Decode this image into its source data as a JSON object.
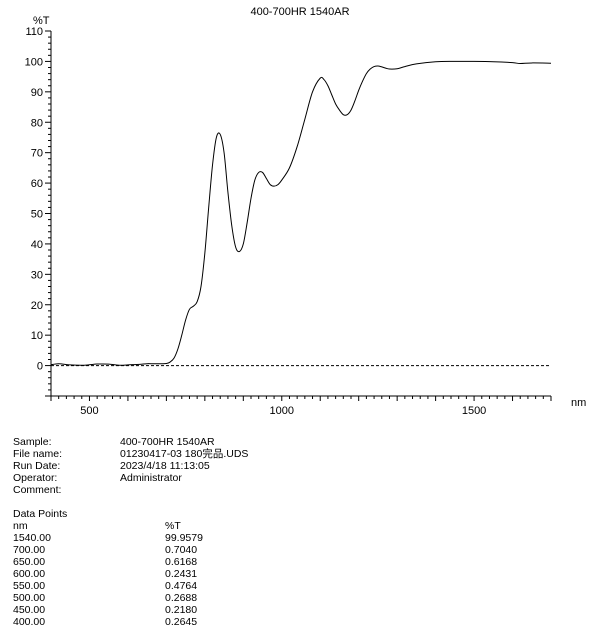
{
  "chart_data": {
    "type": "line",
    "title": "400-700HR 1540AR",
    "ylabel": "%T",
    "xlabel": "nm",
    "xlim": [
      400,
      1700
    ],
    "ylim": [
      -10,
      110
    ],
    "xticks": [
      500,
      1000,
      1500
    ],
    "yticks": [
      110,
      100,
      90,
      80,
      70,
      60,
      50,
      40,
      30,
      20,
      10,
      0
    ],
    "reference_line": 0,
    "grid": false,
    "series": [
      {
        "x": [
          400,
          420,
          450,
          480,
          500,
          520,
          550,
          580,
          600,
          630,
          650,
          670,
          700,
          710,
          720,
          730,
          740,
          750,
          760,
          770,
          780,
          790,
          800,
          810,
          820,
          830,
          840,
          850,
          860,
          870,
          880,
          890,
          900,
          910,
          920,
          930,
          940,
          950,
          960,
          970,
          980,
          990,
          1000,
          1020,
          1040,
          1060,
          1080,
          1100,
          1110,
          1120,
          1130,
          1140,
          1150,
          1160,
          1170,
          1180,
          1190,
          1200,
          1210,
          1220,
          1230,
          1240,
          1250,
          1260,
          1270,
          1280,
          1300,
          1320,
          1350,
          1400,
          1450,
          1500,
          1550,
          1600,
          1620,
          1650,
          1700
        ],
        "y": [
          0.26,
          0.6,
          0.22,
          0.1,
          0.27,
          0.5,
          0.48,
          0.1,
          0.24,
          0.4,
          0.62,
          0.6,
          0.7,
          1.2,
          2.5,
          5.5,
          10,
          15,
          18.5,
          19.5,
          21,
          26,
          37,
          52,
          66,
          75,
          76,
          70,
          57,
          46,
          39,
          37.5,
          40,
          47,
          55,
          61,
          63.5,
          63.5,
          61.5,
          59.5,
          59,
          59.5,
          61,
          65,
          72,
          81,
          90,
          94.5,
          94,
          92,
          89,
          86,
          84,
          82.5,
          82.5,
          84,
          87,
          90.5,
          93.5,
          96,
          97.5,
          98.3,
          98.5,
          98.2,
          97.8,
          97.5,
          97.6,
          98.3,
          99.2,
          99.9,
          100,
          100,
          99.9,
          99.6,
          99.3,
          99.5,
          99.4
        ]
      }
    ]
  },
  "info": {
    "sample_label": "Sample:",
    "sample_value": "400-700HR 1540AR",
    "file_label": "File name:",
    "file_value": "01230417-03 180完品.UDS",
    "date_label": "Run Date:",
    "date_value": "2023/4/18 11:13:05",
    "operator_label": "Operator:",
    "operator_value": "Administrator",
    "comment_label": "Comment:",
    "comment_value": ""
  },
  "data_points": {
    "title": "Data Points",
    "col1_header": "nm",
    "col2_header": "%T",
    "rows": [
      {
        "nm": "1540.00",
        "t": "99.9579"
      },
      {
        "nm": "700.00",
        "t": "0.7040"
      },
      {
        "nm": "650.00",
        "t": "0.6168"
      },
      {
        "nm": "600.00",
        "t": "0.2431"
      },
      {
        "nm": "550.00",
        "t": "0.4764"
      },
      {
        "nm": "500.00",
        "t": "0.2688"
      },
      {
        "nm": "450.00",
        "t": "0.2180"
      },
      {
        "nm": "400.00",
        "t": "0.2645"
      }
    ]
  }
}
